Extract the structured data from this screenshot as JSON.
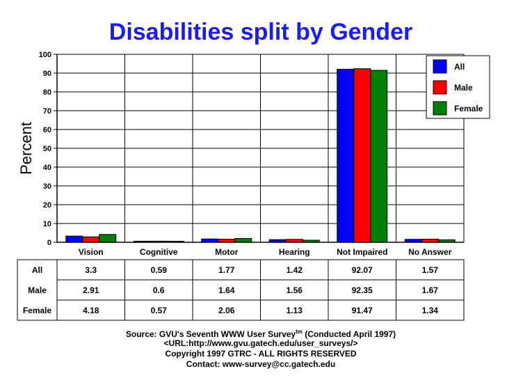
{
  "chart_data": {
    "type": "bar",
    "title": "Disabilities split by Gender",
    "xlabel": "",
    "ylabel": "Percent",
    "ylim": [
      0,
      100
    ],
    "yticks": [
      0,
      10,
      20,
      30,
      40,
      50,
      60,
      70,
      80,
      90,
      100
    ],
    "grid": true,
    "legend_position": "top-right",
    "categories": [
      "Vision",
      "Cognitive",
      "Motor",
      "Hearing",
      "Not Impaired",
      "No Answer"
    ],
    "series": [
      {
        "name": "All",
        "color": "#0000ff",
        "values": [
          3.3,
          0.59,
          1.77,
          1.42,
          92.07,
          1.57
        ]
      },
      {
        "name": "Male",
        "color": "#ff0000",
        "values": [
          2.91,
          0.6,
          1.64,
          1.56,
          92.35,
          1.67
        ]
      },
      {
        "name": "Female",
        "color": "#008000",
        "values": [
          4.18,
          0.57,
          2.06,
          1.13,
          91.47,
          1.34
        ]
      }
    ],
    "table": {
      "rows": [
        {
          "label": "All",
          "cells": [
            "3.3",
            "0.59",
            "1.77",
            "1.42",
            "92.07",
            "1.57"
          ]
        },
        {
          "label": "Male",
          "cells": [
            "2.91",
            "0.6",
            "1.64",
            "1.56",
            "92.35",
            "1.67"
          ]
        },
        {
          "label": "Female",
          "cells": [
            "4.18",
            "0.57",
            "2.06",
            "1.13",
            "91.47",
            "1.34"
          ]
        }
      ]
    }
  },
  "footer": {
    "source_prefix": "Source: GVU's Seventh WWW User Survey",
    "source_tm": "tm",
    "source_suffix": " (Conducted April 1997)",
    "url": "<URL:http://www.gvu.gatech.edu/user_surveys/>",
    "copyright": "Copyright 1997 GTRC - ALL RIGHTS RESERVED",
    "contact": "Contact: www-survey@cc.gatech.edu"
  },
  "title_color": "#1a1aff"
}
